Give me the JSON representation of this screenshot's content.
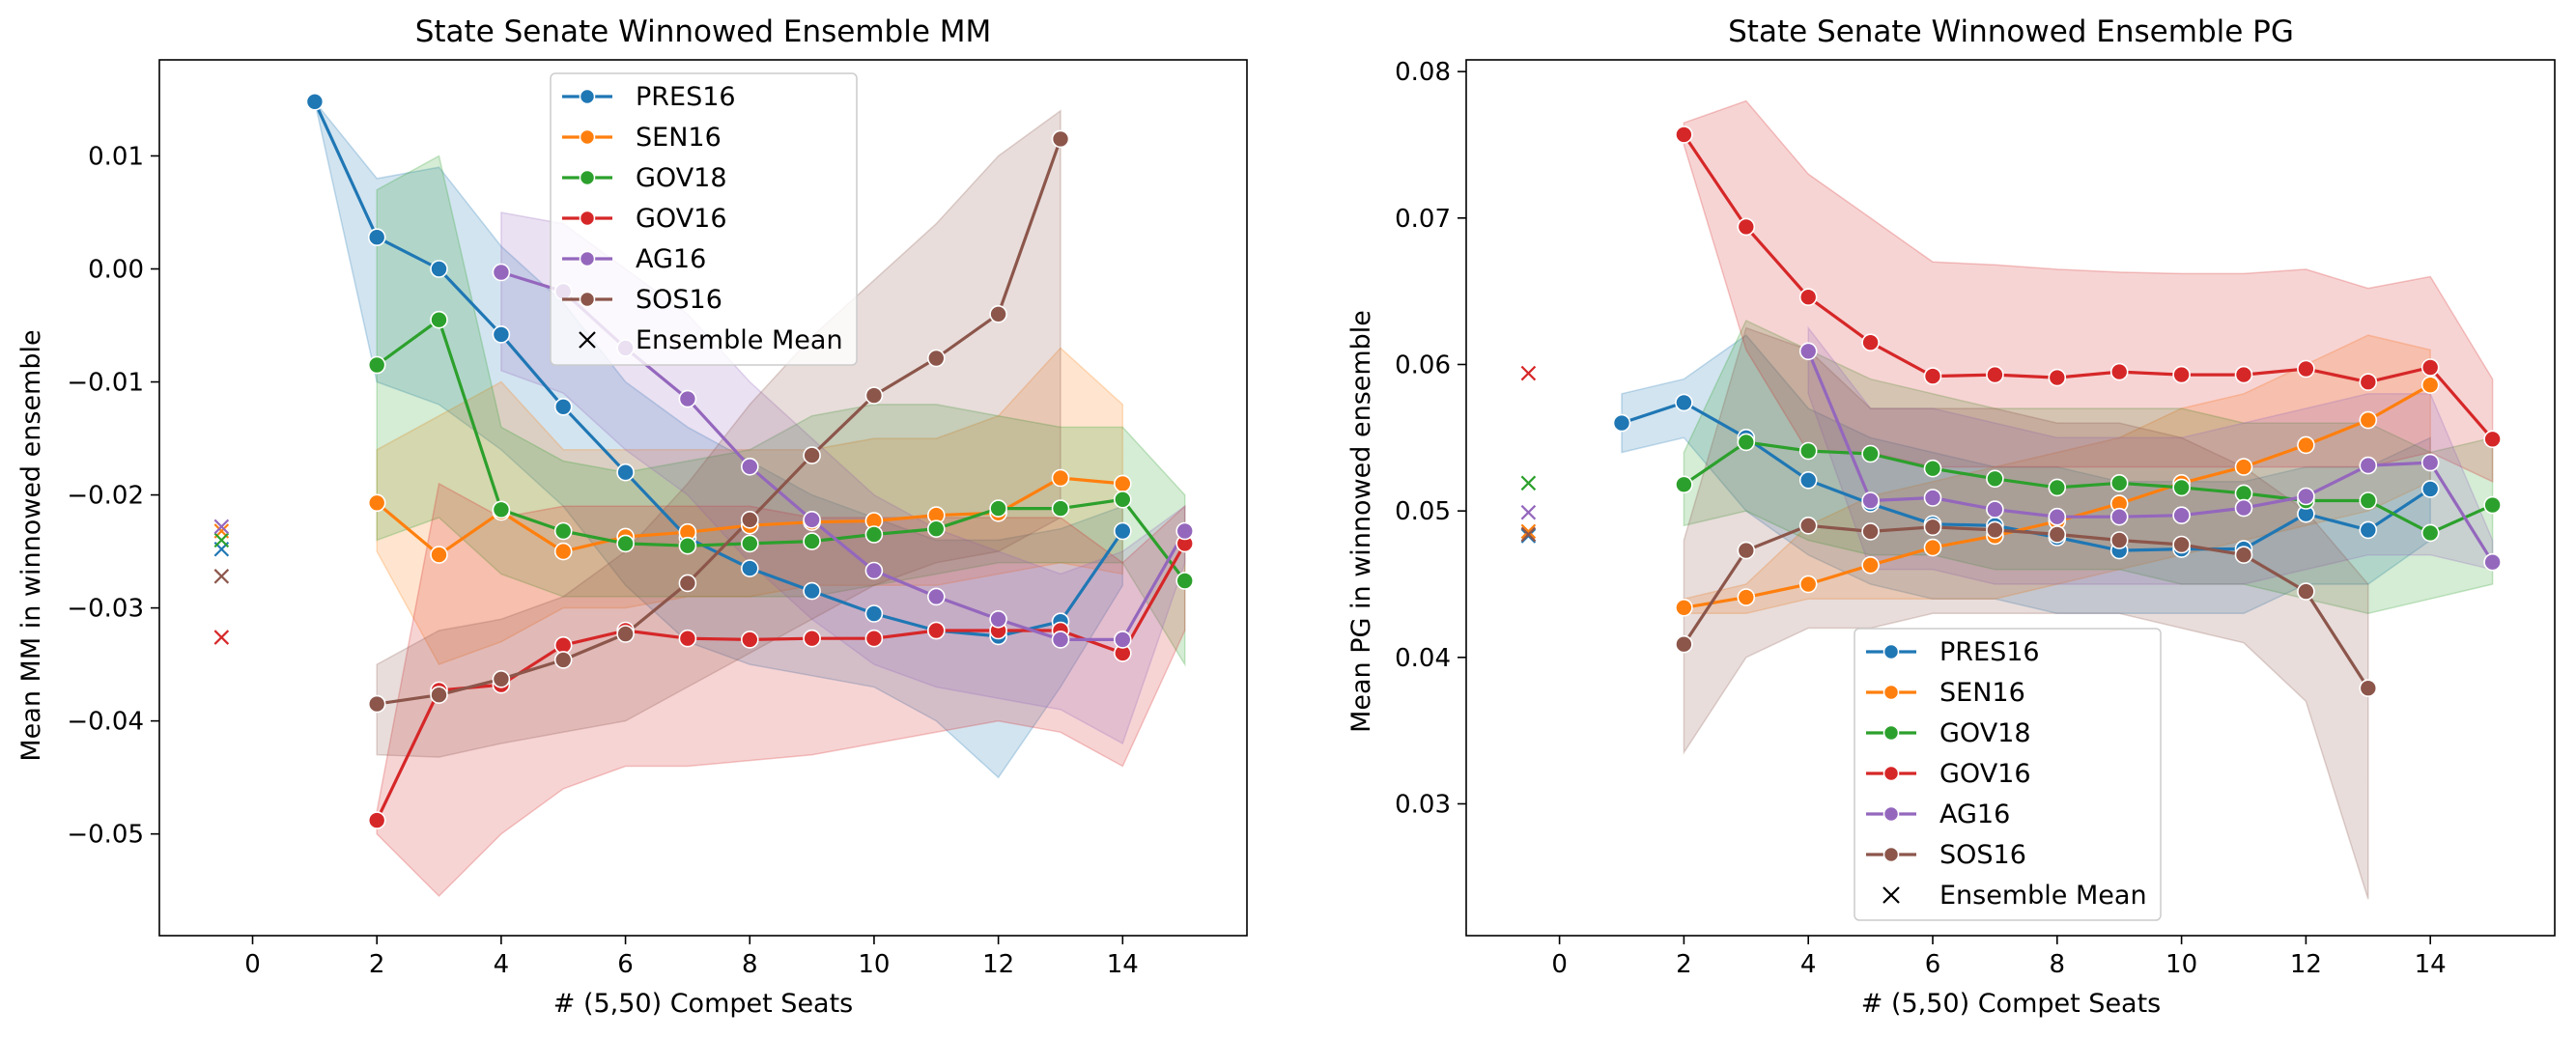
{
  "chart_data": [
    {
      "type": "line",
      "title": "State Senate Winnowed Ensemble MM",
      "xlabel": "# (5,50) Compet Seats",
      "ylabel": "Mean MM in winnowed ensemble",
      "xlim": [
        -1.5,
        16.0
      ],
      "ylim": [
        -0.059,
        0.0185
      ],
      "xticks": [
        0,
        2,
        4,
        6,
        8,
        10,
        12,
        14
      ],
      "yticks": [
        -0.05,
        -0.04,
        -0.03,
        -0.02,
        -0.01,
        0.0,
        0.01
      ],
      "ytick_labels": [
        "−0.05",
        "−0.04",
        "−0.03",
        "−0.02",
        "−0.01",
        "0.00",
        "0.01"
      ],
      "legend_loc": "upper center",
      "legend": {
        "entries": [
          "PRES16",
          "SEN16",
          "GOV18",
          "GOV16",
          "AG16",
          "SOS16"
        ],
        "mean_label": "Ensemble Mean"
      },
      "series": [
        {
          "name": "PRES16",
          "color": "#1f77b4",
          "x": [
            1,
            2,
            3,
            4,
            5,
            6,
            7,
            8,
            9,
            10,
            11,
            12,
            13,
            14
          ],
          "y": [
            0.0148,
            0.0028,
            0.0,
            -0.0058,
            -0.0122,
            -0.018,
            -0.0238,
            -0.0265,
            -0.0285,
            -0.0305,
            -0.032,
            -0.0325,
            -0.0312,
            -0.0232
          ],
          "lower": [
            0.0148,
            -0.01,
            -0.012,
            -0.016,
            -0.021,
            -0.028,
            -0.033,
            -0.035,
            -0.036,
            -0.037,
            -0.04,
            -0.045,
            -0.037,
            -0.028
          ],
          "upper": [
            0.0148,
            0.008,
            0.009,
            0.002,
            -0.003,
            -0.01,
            -0.014,
            -0.017,
            -0.02,
            -0.022,
            -0.024,
            -0.024,
            -0.023,
            -0.021
          ],
          "mean": -0.0248
        },
        {
          "name": "SEN16",
          "color": "#ff7f0e",
          "x": [
            2,
            3,
            4,
            5,
            6,
            7,
            8,
            9,
            10,
            11,
            12,
            13,
            14
          ],
          "y": [
            -0.0207,
            -0.0253,
            -0.0215,
            -0.025,
            -0.0237,
            -0.0233,
            -0.0227,
            -0.0224,
            -0.0223,
            -0.0218,
            -0.0216,
            -0.0185,
            -0.019
          ],
          "lower": [
            -0.025,
            -0.035,
            -0.033,
            -0.03,
            -0.03,
            -0.029,
            -0.029,
            -0.028,
            -0.028,
            -0.028,
            -0.027,
            -0.026,
            -0.027
          ],
          "upper": [
            -0.016,
            -0.013,
            -0.01,
            -0.016,
            -0.016,
            -0.016,
            -0.016,
            -0.016,
            -0.015,
            -0.015,
            -0.013,
            -0.007,
            -0.012
          ],
          "mean": -0.0232
        },
        {
          "name": "GOV18",
          "color": "#2ca02c",
          "x": [
            2,
            3,
            4,
            5,
            6,
            7,
            8,
            9,
            10,
            11,
            12,
            13,
            14,
            15
          ],
          "y": [
            -0.0085,
            -0.0045,
            -0.0213,
            -0.0232,
            -0.0243,
            -0.0245,
            -0.0243,
            -0.0241,
            -0.0235,
            -0.023,
            -0.0212,
            -0.0212,
            -0.0204,
            -0.0276
          ],
          "lower": [
            -0.024,
            -0.022,
            -0.027,
            -0.029,
            -0.029,
            -0.029,
            -0.029,
            -0.029,
            -0.028,
            -0.027,
            -0.026,
            -0.026,
            -0.026,
            -0.035
          ],
          "upper": [
            0.007,
            0.01,
            -0.014,
            -0.017,
            -0.018,
            -0.017,
            -0.016,
            -0.013,
            -0.012,
            -0.012,
            -0.013,
            -0.014,
            -0.014,
            -0.02
          ],
          "mean": -0.024
        },
        {
          "name": "GOV16",
          "color": "#d62728",
          "x": [
            2,
            3,
            4,
            5,
            6,
            7,
            8,
            9,
            10,
            11,
            12,
            13,
            14,
            15
          ],
          "y": [
            -0.0488,
            -0.0373,
            -0.0368,
            -0.0333,
            -0.032,
            -0.0327,
            -0.0328,
            -0.0327,
            -0.0327,
            -0.032,
            -0.032,
            -0.032,
            -0.034,
            -0.0243
          ],
          "lower": [
            -0.05,
            -0.0555,
            -0.05,
            -0.046,
            -0.044,
            -0.044,
            -0.0435,
            -0.043,
            -0.042,
            -0.041,
            -0.04,
            -0.041,
            -0.044,
            -0.032
          ],
          "upper": [
            -0.048,
            -0.019,
            -0.022,
            -0.021,
            -0.021,
            -0.021,
            -0.021,
            -0.022,
            -0.022,
            -0.022,
            -0.022,
            -0.022,
            -0.026,
            -0.021
          ],
          "mean": -0.0326
        },
        {
          "name": "AG16",
          "color": "#9467bd",
          "x": [
            4,
            5,
            6,
            7,
            8,
            9,
            10,
            11,
            12,
            13,
            14,
            15
          ],
          "y": [
            -0.0003,
            -0.002,
            -0.007,
            -0.0115,
            -0.0175,
            -0.0222,
            -0.0267,
            -0.029,
            -0.031,
            -0.0328,
            -0.0328,
            -0.0232
          ],
          "lower": [
            -0.009,
            -0.011,
            -0.016,
            -0.02,
            -0.026,
            -0.031,
            -0.035,
            -0.037,
            -0.038,
            -0.039,
            -0.042,
            -0.026
          ],
          "upper": [
            0.005,
            0.004,
            0.0,
            -0.004,
            -0.01,
            -0.015,
            -0.02,
            -0.023,
            -0.025,
            -0.027,
            -0.025,
            -0.021
          ],
          "mean": -0.0228
        },
        {
          "name": "SOS16",
          "color": "#8c564b",
          "x": [
            2,
            3,
            4,
            5,
            6,
            7,
            8,
            9,
            10,
            11,
            12,
            13
          ],
          "y": [
            -0.0385,
            -0.0377,
            -0.0363,
            -0.0346,
            -0.0323,
            -0.0278,
            -0.0222,
            -0.0165,
            -0.0112,
            -0.0079,
            -0.004,
            0.0115
          ],
          "lower": [
            -0.043,
            -0.0432,
            -0.042,
            -0.041,
            -0.04,
            -0.037,
            -0.034,
            -0.031,
            -0.028,
            -0.026,
            -0.025,
            -0.022
          ],
          "upper": [
            -0.035,
            -0.032,
            -0.031,
            -0.029,
            -0.025,
            -0.019,
            -0.012,
            -0.006,
            -0.001,
            0.004,
            0.01,
            0.014
          ],
          "mean": -0.0272
        }
      ]
    },
    {
      "type": "line",
      "title": "State Senate Winnowed Ensemble PG",
      "xlabel": "# (5,50) Compet Seats",
      "ylabel": "Mean PG in winnowed ensemble",
      "xlim": [
        -1.5,
        16.0
      ],
      "ylim": [
        0.021,
        0.0808
      ],
      "xticks": [
        0,
        2,
        4,
        6,
        8,
        10,
        12,
        14
      ],
      "yticks": [
        0.03,
        0.04,
        0.05,
        0.06,
        0.07,
        0.08
      ],
      "ytick_labels": [
        "0.03",
        "0.04",
        "0.05",
        "0.06",
        "0.07",
        "0.08"
      ],
      "legend_loc": "lower center",
      "legend": {
        "entries": [
          "PRES16",
          "SEN16",
          "GOV18",
          "GOV16",
          "AG16",
          "SOS16"
        ],
        "mean_label": "Ensemble Mean"
      },
      "series": [
        {
          "name": "PRES16",
          "color": "#1f77b4",
          "x": [
            1,
            2,
            3,
            4,
            5,
            6,
            7,
            8,
            9,
            10,
            11,
            12,
            13,
            14
          ],
          "y": [
            0.056,
            0.0574,
            0.055,
            0.0521,
            0.0505,
            0.0491,
            0.049,
            0.0482,
            0.0473,
            0.0474,
            0.0474,
            0.0498,
            0.0487,
            0.0515
          ],
          "lower": [
            0.054,
            0.055,
            0.05,
            0.047,
            0.045,
            0.044,
            0.044,
            0.043,
            0.043,
            0.043,
            0.043,
            0.045,
            0.045,
            0.048
          ],
          "upper": [
            0.058,
            0.059,
            0.062,
            0.057,
            0.055,
            0.054,
            0.053,
            0.053,
            0.052,
            0.052,
            0.052,
            0.053,
            0.053,
            0.055
          ],
          "mean": 0.0483
        },
        {
          "name": "SEN16",
          "color": "#ff7f0e",
          "x": [
            2,
            3,
            4,
            5,
            6,
            7,
            8,
            9,
            10,
            11,
            12,
            13,
            14
          ],
          "y": [
            0.0434,
            0.0441,
            0.045,
            0.0463,
            0.0475,
            0.0483,
            0.0493,
            0.0505,
            0.0519,
            0.053,
            0.0545,
            0.0562,
            0.0586
          ],
          "lower": [
            0.043,
            0.043,
            0.044,
            0.044,
            0.044,
            0.044,
            0.045,
            0.046,
            0.047,
            0.048,
            0.049,
            0.05,
            0.052
          ],
          "upper": [
            0.044,
            0.045,
            0.049,
            0.051,
            0.052,
            0.053,
            0.054,
            0.055,
            0.057,
            0.058,
            0.06,
            0.062,
            0.061
          ],
          "mean": 0.0486
        },
        {
          "name": "GOV18",
          "color": "#2ca02c",
          "x": [
            2,
            3,
            4,
            5,
            6,
            7,
            8,
            9,
            10,
            11,
            12,
            13,
            14,
            15
          ],
          "y": [
            0.0518,
            0.0547,
            0.0541,
            0.0539,
            0.0529,
            0.0522,
            0.0516,
            0.0519,
            0.0516,
            0.0512,
            0.0507,
            0.0507,
            0.0485,
            0.0504
          ],
          "lower": [
            0.049,
            0.05,
            0.048,
            0.047,
            0.047,
            0.046,
            0.046,
            0.046,
            0.045,
            0.045,
            0.044,
            0.043,
            0.044,
            0.045
          ],
          "upper": [
            0.054,
            0.063,
            0.061,
            0.059,
            0.058,
            0.057,
            0.057,
            0.057,
            0.057,
            0.056,
            0.056,
            0.056,
            0.054,
            0.055
          ],
          "mean": 0.0519
        },
        {
          "name": "GOV16",
          "color": "#d62728",
          "x": [
            2,
            3,
            4,
            5,
            6,
            7,
            8,
            9,
            10,
            11,
            12,
            13,
            14,
            15
          ],
          "y": [
            0.0757,
            0.0694,
            0.0646,
            0.0615,
            0.0592,
            0.0593,
            0.0591,
            0.0595,
            0.0593,
            0.0593,
            0.0597,
            0.0588,
            0.0598,
            0.0549
          ],
          "lower": [
            0.075,
            0.061,
            0.054,
            0.054,
            0.053,
            0.053,
            0.053,
            0.053,
            0.053,
            0.053,
            0.053,
            0.053,
            0.054,
            0.052
          ],
          "upper": [
            0.0765,
            0.078,
            0.073,
            0.07,
            0.067,
            0.0668,
            0.0665,
            0.0663,
            0.0662,
            0.0662,
            0.0665,
            0.0652,
            0.066,
            0.059
          ],
          "mean": 0.0594
        },
        {
          "name": "AG16",
          "color": "#9467bd",
          "x": [
            4,
            5,
            6,
            7,
            8,
            9,
            10,
            11,
            12,
            13,
            14,
            15
          ],
          "y": [
            0.0609,
            0.0507,
            0.0509,
            0.0501,
            0.0496,
            0.0496,
            0.0497,
            0.0502,
            0.051,
            0.0531,
            0.0533,
            0.0465
          ],
          "lower": [
            0.058,
            0.046,
            0.046,
            0.045,
            0.045,
            0.045,
            0.045,
            0.045,
            0.046,
            0.047,
            0.047,
            0.046
          ],
          "upper": [
            0.0625,
            0.057,
            0.057,
            0.056,
            0.055,
            0.055,
            0.055,
            0.056,
            0.057,
            0.058,
            0.058,
            0.048
          ],
          "mean": 0.0499
        },
        {
          "name": "SOS16",
          "color": "#8c564b",
          "x": [
            2,
            3,
            4,
            5,
            6,
            7,
            8,
            9,
            10,
            11,
            12,
            13
          ],
          "y": [
            0.0409,
            0.0473,
            0.049,
            0.0486,
            0.0489,
            0.0487,
            0.0484,
            0.048,
            0.0477,
            0.047,
            0.0445,
            0.0379
          ],
          "lower": [
            0.0335,
            0.04,
            0.042,
            0.042,
            0.043,
            0.043,
            0.043,
            0.043,
            0.042,
            0.041,
            0.037,
            0.0235
          ],
          "upper": [
            0.048,
            0.0625,
            0.061,
            0.057,
            0.057,
            0.057,
            0.056,
            0.056,
            0.055,
            0.053,
            0.05,
            0.045
          ],
          "mean": 0.0484
        }
      ]
    }
  ]
}
